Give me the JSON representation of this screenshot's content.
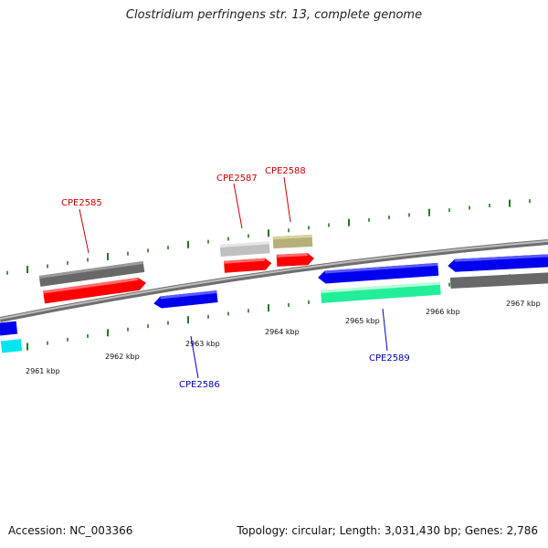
{
  "title": "Clostridium perfringens str. 13, complete genome",
  "footer": {
    "accession": "Accession: NC_003366",
    "stats": "Topology: circular; Length: 3,031,430 bp; Genes: 2,786"
  },
  "colors": {
    "backbone": "#8a8a8a",
    "tick": "#1e7a1e",
    "forward_label": "#cc0000",
    "reverse_label": "#0000bb"
  },
  "position_labels": [
    "2961 kbp",
    "2962 kbp",
    "2963 kbp",
    "2964 kbp",
    "2965 kbp",
    "2966 kbp",
    "2967 kbp"
  ],
  "gene_labels": {
    "CPE2585": "CPE2585",
    "CPE2586": "CPE2586",
    "CPE2587": "CPE2587",
    "CPE2588": "CPE2588",
    "CPE2589": "CPE2589"
  },
  "features": [
    {
      "id": "fwd-a-top",
      "color": "#686868",
      "strand": "forward"
    },
    {
      "id": "fwd-a",
      "color": "#ff0000",
      "strand": "forward"
    },
    {
      "id": "fwd-b-top",
      "color": "#c0c0c0",
      "strand": "forward"
    },
    {
      "id": "fwd-b",
      "color": "#ff0000",
      "strand": "forward"
    },
    {
      "id": "fwd-c-top",
      "color": "#b5b078",
      "strand": "forward"
    },
    {
      "id": "fwd-c",
      "color": "#ff0000",
      "strand": "forward"
    },
    {
      "id": "rev-a",
      "color": "#0000ee",
      "strand": "reverse"
    },
    {
      "id": "rev-a-low",
      "color": "#00e5ee",
      "strand": "reverse"
    },
    {
      "id": "rev-b",
      "color": "#0000ee",
      "strand": "reverse"
    },
    {
      "id": "rev-c",
      "color": "#0000ee",
      "strand": "reverse"
    },
    {
      "id": "rev-c-low",
      "color": "#22ee99",
      "strand": "reverse"
    },
    {
      "id": "rev-d",
      "color": "#0000ee",
      "strand": "reverse"
    },
    {
      "id": "rev-d-low",
      "color": "#686868",
      "strand": "reverse"
    }
  ]
}
